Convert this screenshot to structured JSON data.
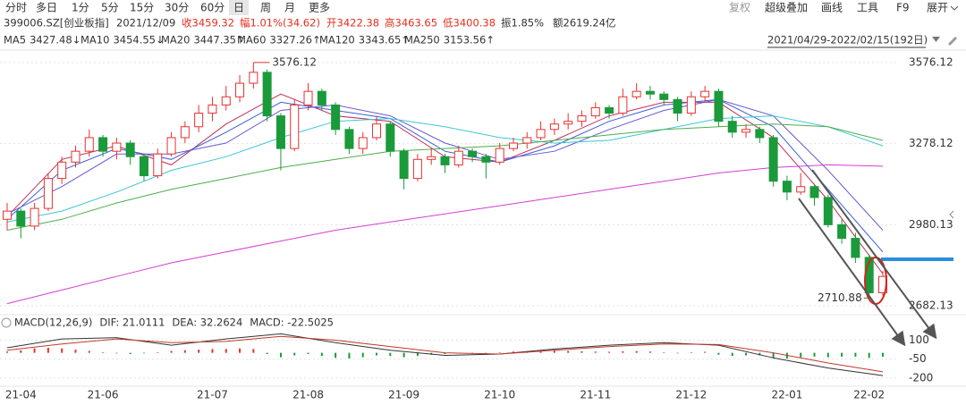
{
  "toolbar": {
    "periods": [
      "分时",
      "多日",
      "1分",
      "5分",
      "15分",
      "30分",
      "60分",
      "日",
      "周",
      "月",
      "更多"
    ],
    "tools": [
      "复权",
      "超级叠加",
      "画线",
      "工具",
      "F9",
      "展开"
    ]
  },
  "quote": {
    "symbol": "399006.SZ[创业板指]",
    "date": "2021/12/09",
    "close": "收3459.32",
    "change": "幅1.01%(34.62)",
    "open": "开3422.38",
    "high": "高3463.65",
    "low": "低3400.38",
    "amplitude": "振1.85%",
    "amount": "额2619.24亿"
  },
  "range": "2021/04/29-2022/02/15(192日)",
  "chart_data": [
    {
      "type": "candlestick",
      "categories": [
        null,
        "21-04",
        null,
        null,
        null,
        null,
        null,
        "21-06",
        null,
        null,
        null,
        null,
        null,
        null,
        null,
        "21-07",
        null,
        null,
        null,
        null,
        null,
        null,
        "21-08",
        null,
        null,
        null,
        null,
        null,
        null,
        "21-09",
        null,
        null,
        null,
        null,
        null,
        null,
        "21-10",
        null,
        null,
        null,
        null,
        null,
        null,
        "21-11",
        null,
        null,
        null,
        null,
        null,
        null,
        "21-12",
        null,
        null,
        null,
        null,
        null,
        null,
        "22-01",
        null,
        null,
        null,
        null,
        null,
        "22-02",
        null
      ],
      "candles": [
        [
          3000,
          3060,
          2960,
          3030
        ],
        [
          3030,
          3040,
          2930,
          2975
        ],
        [
          2975,
          3060,
          2960,
          3040
        ],
        [
          3040,
          3170,
          3030,
          3150
        ],
        [
          3150,
          3230,
          3130,
          3210
        ],
        [
          3210,
          3270,
          3190,
          3250
        ],
        [
          3250,
          3330,
          3230,
          3300
        ],
        [
          3300,
          3310,
          3230,
          3250
        ],
        [
          3250,
          3300,
          3220,
          3280
        ],
        [
          3280,
          3290,
          3200,
          3230
        ],
        [
          3230,
          3240,
          3140,
          3160
        ],
        [
          3160,
          3260,
          3150,
          3240
        ],
        [
          3240,
          3320,
          3230,
          3300
        ],
        [
          3300,
          3360,
          3280,
          3340
        ],
        [
          3340,
          3420,
          3320,
          3390
        ],
        [
          3390,
          3450,
          3360,
          3420
        ],
        [
          3420,
          3490,
          3400,
          3450
        ],
        [
          3450,
          3530,
          3430,
          3500
        ],
        [
          3500,
          3576.12,
          3480,
          3540
        ],
        [
          3540,
          3550,
          3360,
          3380
        ],
        [
          3380,
          3390,
          3180,
          3260
        ],
        [
          3260,
          3440,
          3250,
          3420
        ],
        [
          3420,
          3500,
          3400,
          3470
        ],
        [
          3470,
          3480,
          3400,
          3420
        ],
        [
          3420,
          3430,
          3310,
          3330
        ],
        [
          3330,
          3340,
          3240,
          3260
        ],
        [
          3260,
          3320,
          3240,
          3300
        ],
        [
          3300,
          3380,
          3290,
          3350
        ],
        [
          3350,
          3360,
          3230,
          3250
        ],
        [
          3250,
          3260,
          3110,
          3150
        ],
        [
          3150,
          3240,
          3140,
          3220
        ],
        [
          3220,
          3260,
          3200,
          3230
        ],
        [
          3230,
          3240,
          3170,
          3200
        ],
        [
          3200,
          3270,
          3190,
          3250
        ],
        [
          3250,
          3260,
          3210,
          3230
        ],
        [
          3230,
          3240,
          3150,
          3210
        ],
        [
          3210,
          3280,
          3200,
          3260
        ],
        [
          3260,
          3300,
          3250,
          3280
        ],
        [
          3280,
          3320,
          3260,
          3300
        ],
        [
          3300,
          3360,
          3290,
          3330
        ],
        [
          3330,
          3370,
          3310,
          3350
        ],
        [
          3350,
          3390,
          3330,
          3360
        ],
        [
          3360,
          3400,
          3340,
          3380
        ],
        [
          3380,
          3430,
          3370,
          3410
        ],
        [
          3410,
          3420,
          3370,
          3390
        ],
        [
          3390,
          3480,
          3380,
          3450
        ],
        [
          3450,
          3500,
          3440,
          3470
        ],
        [
          3470,
          3490,
          3440,
          3460
        ],
        [
          3460,
          3470,
          3420,
          3440
        ],
        [
          3440,
          3450,
          3360,
          3390
        ],
        [
          3390,
          3470,
          3380,
          3450
        ],
        [
          3450,
          3490,
          3430,
          3470
        ],
        [
          3470,
          3480,
          3340,
          3360
        ],
        [
          3360,
          3380,
          3300,
          3320
        ],
        [
          3320,
          3350,
          3300,
          3330
        ],
        [
          3330,
          3340,
          3280,
          3300
        ],
        [
          3300,
          3310,
          3120,
          3140
        ],
        [
          3140,
          3160,
          3070,
          3100
        ],
        [
          3100,
          3170,
          3090,
          3120
        ],
        [
          3120,
          3130,
          3050,
          3080
        ],
        [
          3080,
          3090,
          2970,
          2980
        ],
        [
          2980,
          3000,
          2910,
          2930
        ],
        [
          2930,
          2950,
          2840,
          2860
        ],
        [
          2860,
          2870,
          2710.88,
          2730
        ],
        [
          2730,
          2810,
          2720,
          2790
        ]
      ],
      "up_color": "#e8312f",
      "down_color": "#1a9a3a",
      "series": [
        {
          "name": "MA5",
          "legend_value": "3427.48↓",
          "color": "#c0305a",
          "x": [
            0,
            4,
            8,
            12,
            16,
            20,
            24,
            28,
            32,
            36,
            40,
            44,
            48,
            52,
            56,
            60,
            64
          ],
          "values": [
            3010,
            3220,
            3270,
            3200,
            3350,
            3460,
            3380,
            3360,
            3230,
            3210,
            3290,
            3380,
            3430,
            3430,
            3300,
            3070,
            2800
          ]
        },
        {
          "name": "MA10",
          "legend_value": "3454.55↓",
          "color": "#3b5fd6",
          "x": [
            0,
            4,
            8,
            12,
            16,
            20,
            24,
            28,
            32,
            36,
            40,
            44,
            48,
            52,
            56,
            60,
            64
          ],
          "values": [
            3000,
            3180,
            3260,
            3220,
            3320,
            3430,
            3400,
            3370,
            3250,
            3210,
            3270,
            3360,
            3420,
            3440,
            3340,
            3110,
            2880
          ]
        },
        {
          "name": "MA20",
          "legend_value": "3447.35↑",
          "color": "#6a5acd",
          "x": [
            0,
            4,
            8,
            12,
            16,
            20,
            24,
            28,
            32,
            36,
            40,
            44,
            48,
            52,
            56,
            60,
            64
          ],
          "values": [
            3020,
            3120,
            3240,
            3240,
            3280,
            3400,
            3420,
            3380,
            3280,
            3220,
            3250,
            3330,
            3400,
            3440,
            3380,
            3180,
            2960
          ]
        },
        {
          "name": "MA60",
          "legend_value": "3327.26↑",
          "color": "#3cc6d8",
          "x": [
            0,
            4,
            8,
            12,
            16,
            20,
            24,
            28,
            32,
            36,
            40,
            44,
            48,
            52,
            56,
            60,
            64
          ],
          "values": [
            2990,
            3030,
            3100,
            3180,
            3230,
            3300,
            3360,
            3370,
            3340,
            3300,
            3280,
            3290,
            3330,
            3370,
            3380,
            3340,
            3270
          ]
        },
        {
          "name": "MA120",
          "legend_value": "3343.65↑",
          "color": "#4cae4c",
          "x": [
            0,
            4,
            8,
            12,
            16,
            20,
            24,
            28,
            32,
            36,
            40,
            44,
            48,
            52,
            56,
            60,
            64
          ],
          "values": [
            2960,
            3000,
            3060,
            3110,
            3150,
            3190,
            3220,
            3250,
            3260,
            3270,
            3290,
            3310,
            3330,
            3340,
            3350,
            3340,
            3290
          ]
        },
        {
          "name": "MA250",
          "legend_value": "3153.56↑",
          "color": "#d33fd3",
          "x": [
            0,
            4,
            8,
            12,
            16,
            20,
            24,
            28,
            32,
            36,
            40,
            44,
            48,
            52,
            56,
            60,
            64
          ],
          "values": [
            2690,
            2740,
            2790,
            2840,
            2880,
            2920,
            2960,
            2990,
            3020,
            3050,
            3080,
            3110,
            3140,
            3170,
            3190,
            3200,
            3195
          ]
        }
      ],
      "ylim": [
        2656,
        3602
      ],
      "yticks": [
        2682.13,
        2980.13,
        3278.12,
        3576.12
      ],
      "grid": true
    },
    {
      "type": "macd",
      "title": "MACD(12,26,9)",
      "histogram": {
        "name": "MACD: -22.5025",
        "up_color": "#e8312f",
        "down_color": "#1a9a3a",
        "values": [
          10,
          20,
          35,
          40,
          35,
          25,
          15,
          5,
          -5,
          -10,
          -5,
          5,
          15,
          20,
          25,
          30,
          30,
          35,
          30,
          -10,
          -35,
          -20,
          -10,
          -25,
          -40,
          -45,
          -35,
          -20,
          -25,
          -35,
          -25,
          -15,
          -10,
          -5,
          -5,
          -8,
          5,
          10,
          12,
          15,
          18,
          15,
          12,
          10,
          8,
          12,
          14,
          10,
          5,
          -5,
          5,
          8,
          -15,
          -25,
          -20,
          -20,
          -40,
          -45,
          -35,
          -30,
          -35,
          -30,
          -30,
          -40,
          -30
        ]
      },
      "series": [
        {
          "name": "DIF: 21.0111",
          "color": "#333333",
          "x": [
            0,
            4,
            8,
            12,
            16,
            20,
            24,
            28,
            32,
            36,
            40,
            44,
            48,
            52,
            56,
            60,
            64
          ],
          "values": [
            40,
            110,
            120,
            60,
            110,
            150,
            80,
            20,
            -20,
            -10,
            30,
            60,
            80,
            60,
            -40,
            -120,
            -180
          ]
        },
        {
          "name": "DEA: 32.2624",
          "color": "#c0392b",
          "x": [
            0,
            4,
            8,
            12,
            16,
            20,
            24,
            28,
            32,
            36,
            40,
            44,
            48,
            52,
            56,
            60,
            64
          ],
          "values": [
            20,
            70,
            110,
            80,
            90,
            130,
            100,
            50,
            0,
            -10,
            20,
            50,
            70,
            65,
            0,
            -80,
            -150
          ]
        }
      ],
      "ylim": [
        -250,
        160
      ],
      "yticks": [
        -200,
        -50,
        100
      ]
    }
  ]
}
